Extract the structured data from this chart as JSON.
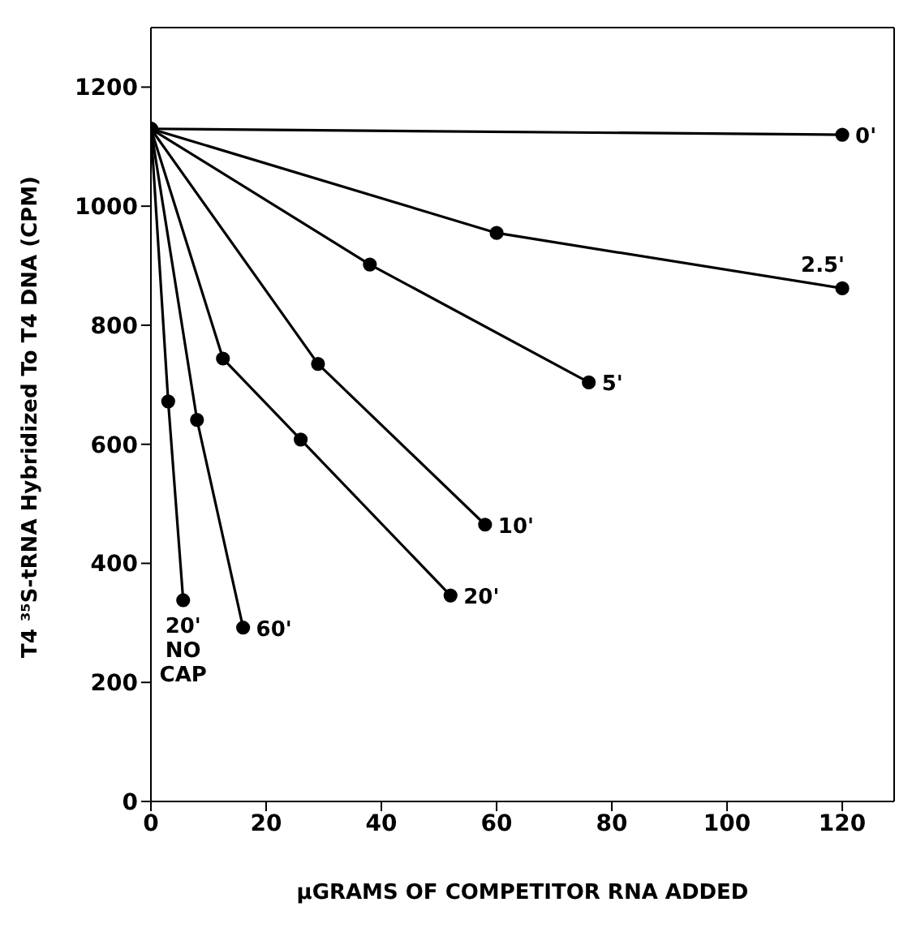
{
  "chart_data": {
    "type": "line",
    "xlabel": "μGRAMS OF COMPETITOR RNA ADDED",
    "ylabel": "T4 ³⁵S-tRNA Hybridized To T4 DNA (CPM)",
    "xlim": [
      0,
      129
    ],
    "xticks": [
      0,
      20,
      40,
      60,
      80,
      100,
      120
    ],
    "ylim": [
      0,
      1300
    ],
    "yticks": [
      0,
      200,
      400,
      600,
      800,
      1000,
      1200
    ],
    "marker": "circle",
    "line_style": "solid",
    "series": [
      {
        "name": "0'",
        "color": "#000000",
        "x": [
          0,
          120
        ],
        "values": [
          1130,
          1120
        ]
      },
      {
        "name": "2.5'",
        "color": "#000000",
        "x": [
          0,
          60,
          120
        ],
        "values": [
          1130,
          955,
          862
        ]
      },
      {
        "name": "5'",
        "color": "#000000",
        "x": [
          0,
          38,
          76
        ],
        "values": [
          1130,
          902,
          704
        ]
      },
      {
        "name": "10'",
        "color": "#000000",
        "x": [
          0,
          29,
          58
        ],
        "values": [
          1130,
          735,
          465
        ]
      },
      {
        "name": "20'",
        "color": "#000000",
        "x": [
          0,
          12.5,
          26,
          52
        ],
        "values": [
          1130,
          744,
          608,
          346
        ]
      },
      {
        "name": "60'",
        "color": "#000000",
        "x": [
          0,
          8,
          16
        ],
        "values": [
          1130,
          641,
          292
        ]
      },
      {
        "name": "20' NO CAP",
        "color": "#000000",
        "x": [
          0,
          3,
          5.6
        ],
        "values": [
          1130,
          672,
          338
        ]
      }
    ]
  }
}
